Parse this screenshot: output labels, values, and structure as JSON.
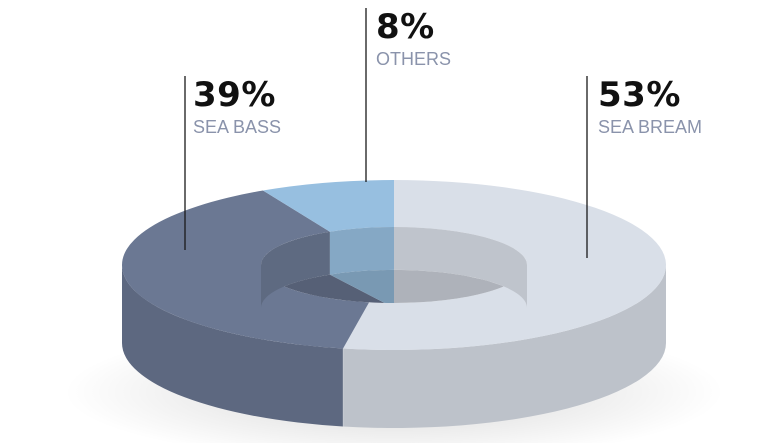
{
  "chart_data": {
    "type": "pie",
    "style": "3d-donut",
    "categories": [
      "SEA BREAM",
      "SEA BASS",
      "OTHERS"
    ],
    "values": [
      53,
      39,
      8
    ],
    "labels": [
      "53%",
      "39%",
      "8%"
    ],
    "colors": {
      "SEA BREAM": "#d9dfe8",
      "SEA BASS": "#6b7893",
      "OTHERS": "#97bfe0"
    },
    "legend": "callouts"
  }
}
